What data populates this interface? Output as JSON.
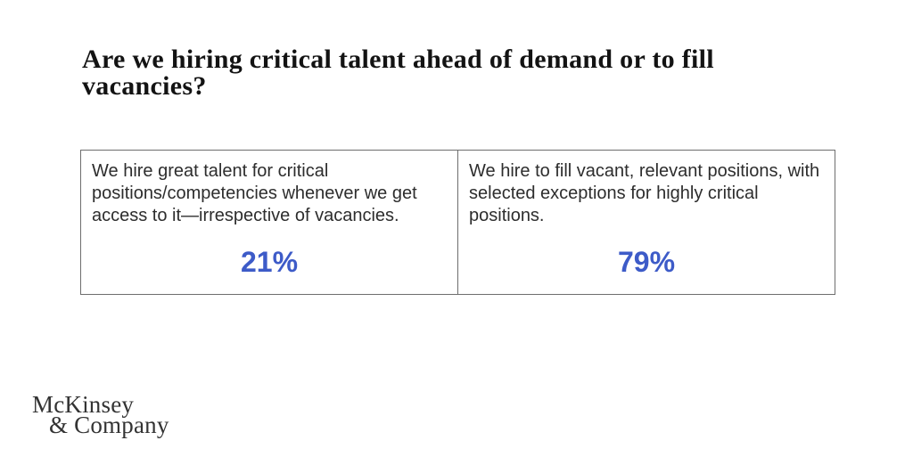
{
  "title": {
    "lines": [
      "Are we hiring critical talent ahead of demand or to fill",
      "vacancies?"
    ],
    "full_text": "Are we hiring critical talent ahead of demand or to fill vacancies?"
  },
  "options": [
    {
      "description": "We hire great talent for critical positions/competencies whenever we get access to it—irrespective of vacancies.",
      "percentage": "21%"
    },
    {
      "description": "We hire to fill vacant, relevant positions, with selected exceptions for highly critical positions.",
      "percentage": "79%"
    }
  ],
  "footer": {
    "logo_line1": "McKinsey",
    "logo_line2": "& Company"
  },
  "colors": {
    "accent_blue": "#3d5bc8",
    "table_border": "#6e6e6e",
    "title_text": "#131313",
    "body_text": "#2d2d2d",
    "background": "#ffffff"
  },
  "chart_data": {
    "type": "table",
    "title": "Are we hiring critical talent ahead of demand or to fill vacancies?",
    "categories": [
      "We hire great talent for critical positions/competencies whenever we get access to it—irrespective of vacancies.",
      "We hire to fill vacant, relevant positions, with selected exceptions for highly critical positions."
    ],
    "values": [
      21,
      79
    ],
    "unit": "%"
  }
}
